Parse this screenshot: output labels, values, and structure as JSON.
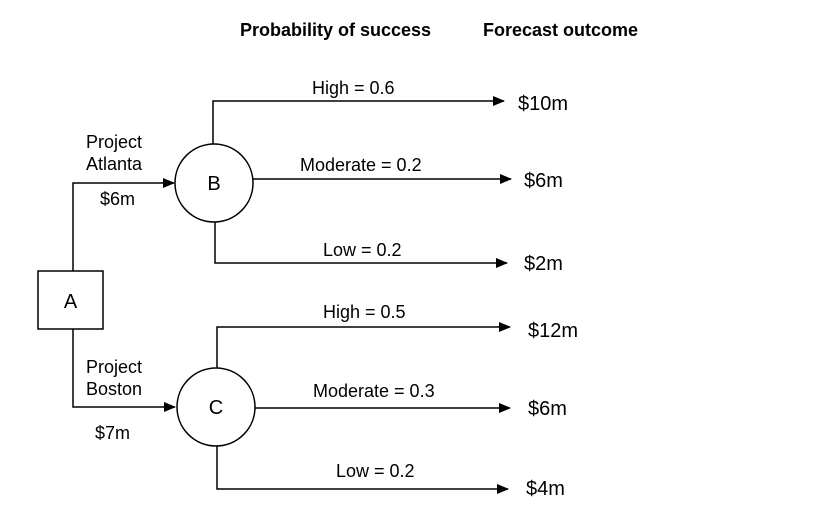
{
  "headers": {
    "probability": "Probability of success",
    "forecast": "Forecast outcome"
  },
  "decision": {
    "label": "A"
  },
  "projects": [
    {
      "name_line1": "Project",
      "name_line2": "Atlanta",
      "cost": "$6m",
      "node": "B",
      "branches": [
        {
          "label": "High = 0.6",
          "outcome": "$10m"
        },
        {
          "label": "Moderate = 0.2",
          "outcome": "$6m"
        },
        {
          "label": "Low = 0.2",
          "outcome": "$2m"
        }
      ]
    },
    {
      "name_line1": "Project",
      "name_line2": "Boston",
      "cost": "$7m",
      "node": "C",
      "branches": [
        {
          "label": "High = 0.5",
          "outcome": "$12m"
        },
        {
          "label": "Moderate = 0.3",
          "outcome": "$6m"
        },
        {
          "label": "Low = 0.2",
          "outcome": "$4m"
        }
      ]
    }
  ]
}
